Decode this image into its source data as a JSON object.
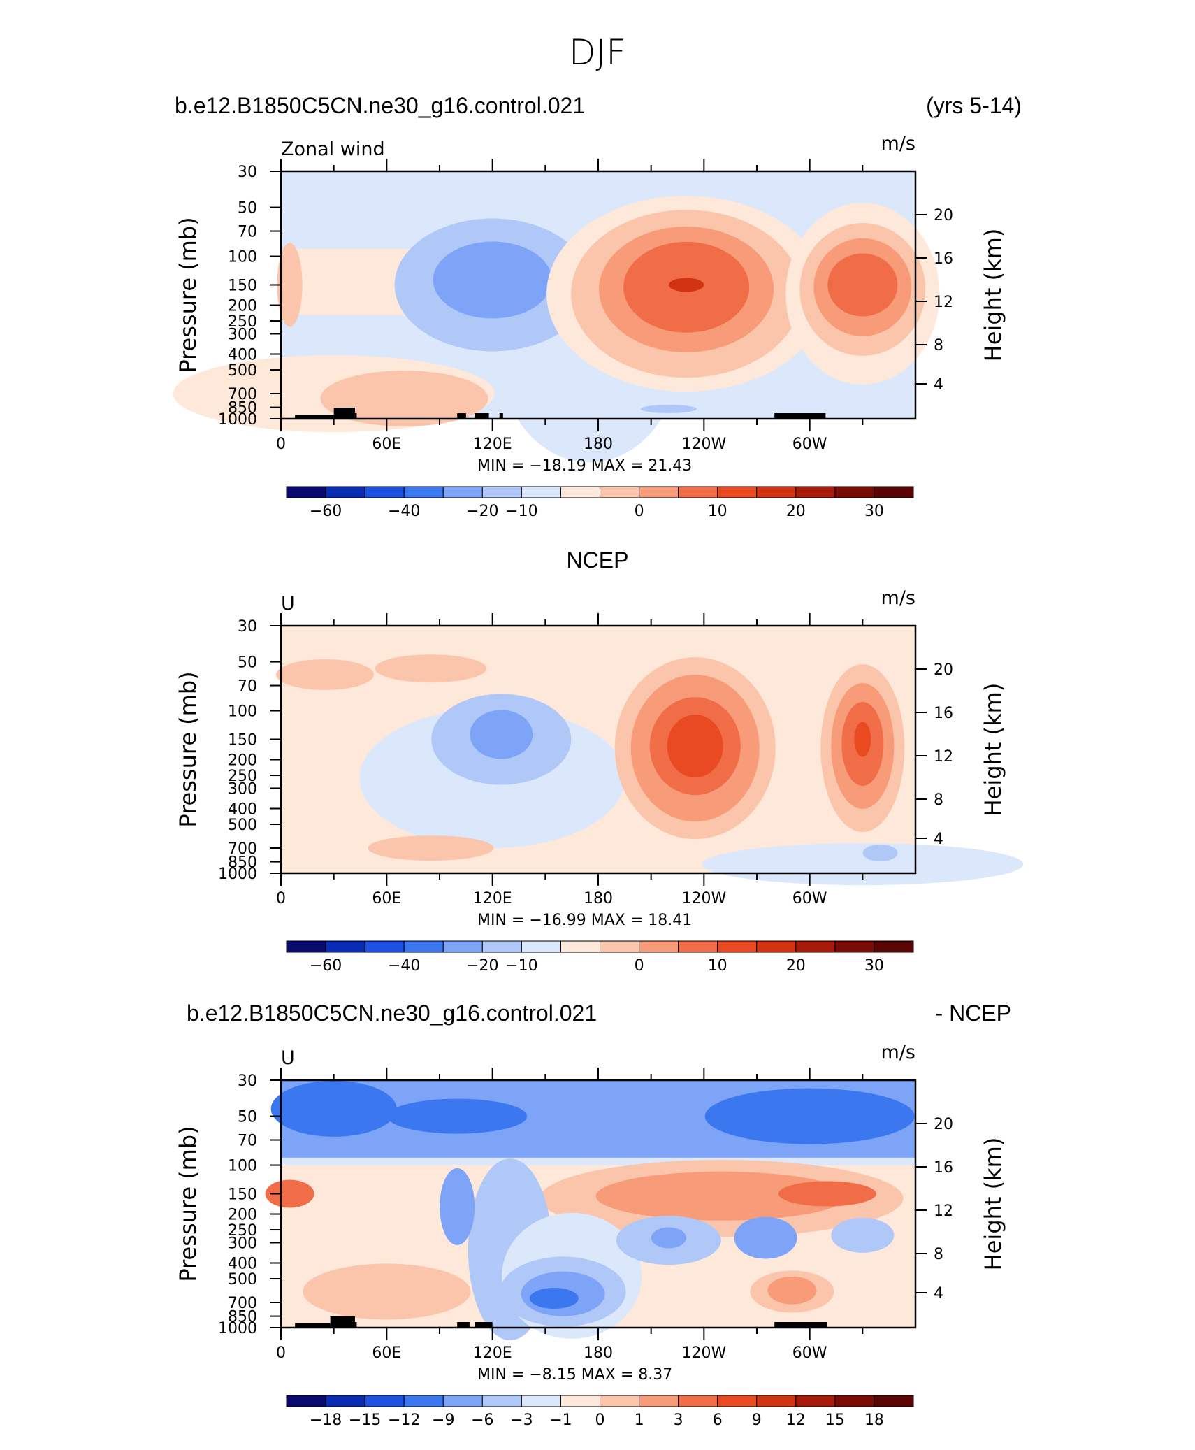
{
  "figure": {
    "title": "DJF"
  },
  "panels": [
    {
      "id": "model",
      "header_left": "b.e12.B1850C5CN.ne30_g16.control.021",
      "header_center": "",
      "header_right": "(yrs 5-14)",
      "var_label": "Zonal wind",
      "units": "m/s",
      "min_max": "MIN =  −18.19   MAX =    21.43",
      "colorbar_labels": [
        "−60",
        "−40",
        "−20",
        "−10",
        "0",
        "10",
        "20",
        "30"
      ]
    },
    {
      "id": "obs",
      "header_left": "",
      "header_center": "NCEP",
      "header_right": "",
      "var_label": "U",
      "units": "m/s",
      "min_max": "MIN =  −16.99   MAX =    18.41",
      "colorbar_labels": [
        "−60",
        "−40",
        "−20",
        "−10",
        "0",
        "10",
        "20",
        "30"
      ]
    },
    {
      "id": "diff",
      "header_left": "b.e12.B1850C5CN.ne30_g16.control.021",
      "header_center": "",
      "header_right": "- NCEP",
      "var_label": "U",
      "units": "m/s",
      "min_max": "MIN =     −8.15   MAX =      8.37",
      "colorbar_labels": [
        "−18",
        "−15",
        "−12",
        "−9",
        "−6",
        "−3",
        "−1",
        "0",
        "1",
        "3",
        "6",
        "9",
        "12",
        "15",
        "18"
      ]
    }
  ],
  "chart_data": [
    {
      "type": "heatmap",
      "title": "Zonal wind",
      "units": "m/s",
      "x_ticks": [
        "0",
        "60E",
        "120E",
        "180",
        "120W",
        "60W"
      ],
      "y_left_label": "Pressure (mb)",
      "y_left_ticks": [
        "30",
        "50",
        "70",
        "100",
        "150",
        "200",
        "250",
        "300",
        "400",
        "500",
        "700",
        "850",
        "1000"
      ],
      "y_right_label": "Height (km)",
      "y_right_ticks": [
        "20",
        "16",
        "12",
        "8",
        "4"
      ],
      "contour_levels": [
        -60,
        -40,
        -20,
        -10,
        0,
        10,
        20,
        30
      ],
      "min": -18.19,
      "max": 21.43,
      "features": [
        {
          "longitude": 125,
          "pressure": 150,
          "value": -15
        },
        {
          "longitude": 230,
          "pressure": 150,
          "value": 21
        },
        {
          "longitude": 330,
          "pressure": 150,
          "value": 18
        }
      ]
    },
    {
      "type": "heatmap",
      "title": "NCEP",
      "units": "m/s",
      "x_ticks": [
        "0",
        "60E",
        "120E",
        "180",
        "120W",
        "60W"
      ],
      "y_left_label": "Pressure (mb)",
      "y_left_ticks": [
        "30",
        "50",
        "70",
        "100",
        "150",
        "200",
        "250",
        "300",
        "400",
        "500",
        "700",
        "850",
        "1000"
      ],
      "y_right_label": "Height (km)",
      "y_right_ticks": [
        "20",
        "16",
        "12",
        "8",
        "4"
      ],
      "contour_levels": [
        -60,
        -40,
        -20,
        -10,
        0,
        10,
        20,
        30
      ],
      "min": -16.99,
      "max": 18.41,
      "features": [
        {
          "longitude": 125,
          "pressure": 150,
          "value": -14
        },
        {
          "longitude": 235,
          "pressure": 170,
          "value": 18
        },
        {
          "longitude": 330,
          "pressure": 170,
          "value": 17
        }
      ]
    },
    {
      "type": "heatmap",
      "title": "b.e12.B1850C5CN.ne30_g16.control.021 - NCEP",
      "units": "m/s",
      "x_ticks": [
        "0",
        "60E",
        "120E",
        "180",
        "120W",
        "60W"
      ],
      "y_left_label": "Pressure (mb)",
      "y_left_ticks": [
        "30",
        "50",
        "70",
        "100",
        "150",
        "200",
        "250",
        "300",
        "400",
        "500",
        "700",
        "850",
        "1000"
      ],
      "y_right_label": "Height (km)",
      "y_right_ticks": [
        "20",
        "16",
        "12",
        "8",
        "4"
      ],
      "contour_levels": [
        -18,
        -15,
        -12,
        -9,
        -6,
        -3,
        -1,
        0,
        1,
        3,
        6,
        9,
        12,
        15,
        18
      ],
      "min": -8.15,
      "max": 8.37,
      "features": [
        {
          "longitude": 155,
          "pressure": 650,
          "value": -8
        },
        {
          "longitude": 300,
          "pressure": 150,
          "value": 8
        },
        {
          "longitude": 40,
          "pressure": 40,
          "value": -7
        }
      ]
    }
  ],
  "colors": {
    "colorbar_8": [
      "#0a0a6e",
      "#0a2cb4",
      "#1c50e0",
      "#3b78ef",
      "#7ea4f7",
      "#b0c8f8",
      "#dbe8fb",
      "#fde8da",
      "#fbc5ac",
      "#f79b78",
      "#f06d47",
      "#ea4a22",
      "#d23411",
      "#a81b0a",
      "#7a0b05"
    ],
    "colorbar_15": [
      "#0a0a6e",
      "#0a2cb4",
      "#1c50e0",
      "#3b78ef",
      "#7ea4f7",
      "#b0c8f8",
      "#dbe8fb",
      "#fde8da",
      "#fbc5ac",
      "#f79b78",
      "#f06d47",
      "#ea4a22",
      "#d23411",
      "#a81b0a",
      "#7a0b05",
      "#5a0503"
    ],
    "terrain": "#000000"
  }
}
